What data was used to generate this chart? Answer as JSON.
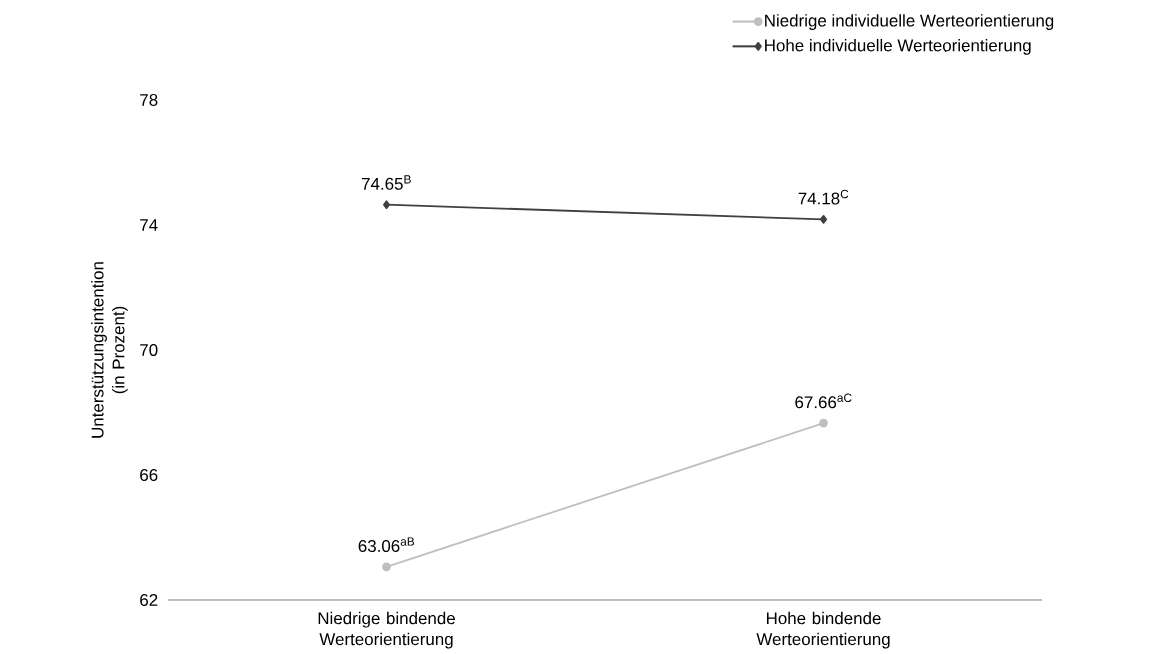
{
  "chart_data": {
    "type": "line",
    "ylabel": "Unterstützungsintention (in Prozent)",
    "categories": [
      "Niedrige bindende Werteorientierung",
      "Hohe bindende Werteorientierung"
    ],
    "series": [
      {
        "name": "Niedrige individuelle Werteorientierung",
        "color": "#bfbfbf",
        "marker": "circle",
        "values": [
          63.06,
          67.66
        ],
        "value_labels": [
          "63.06$^{aB}$",
          "67.66$^{aC}$"
        ]
      },
      {
        "name": "Hohe individuelle Werteorientierung",
        "color": "#404040",
        "marker": "diamond",
        "values": [
          74.65,
          74.18
        ],
        "value_labels": [
          "74.65$^{B}$",
          "74.18$^{C}$"
        ]
      }
    ],
    "ylim": [
      62,
      78
    ],
    "yticks": [
      62,
      66,
      70,
      74,
      78
    ],
    "grid": false,
    "legend": "top right",
    "line_style": "solid"
  }
}
